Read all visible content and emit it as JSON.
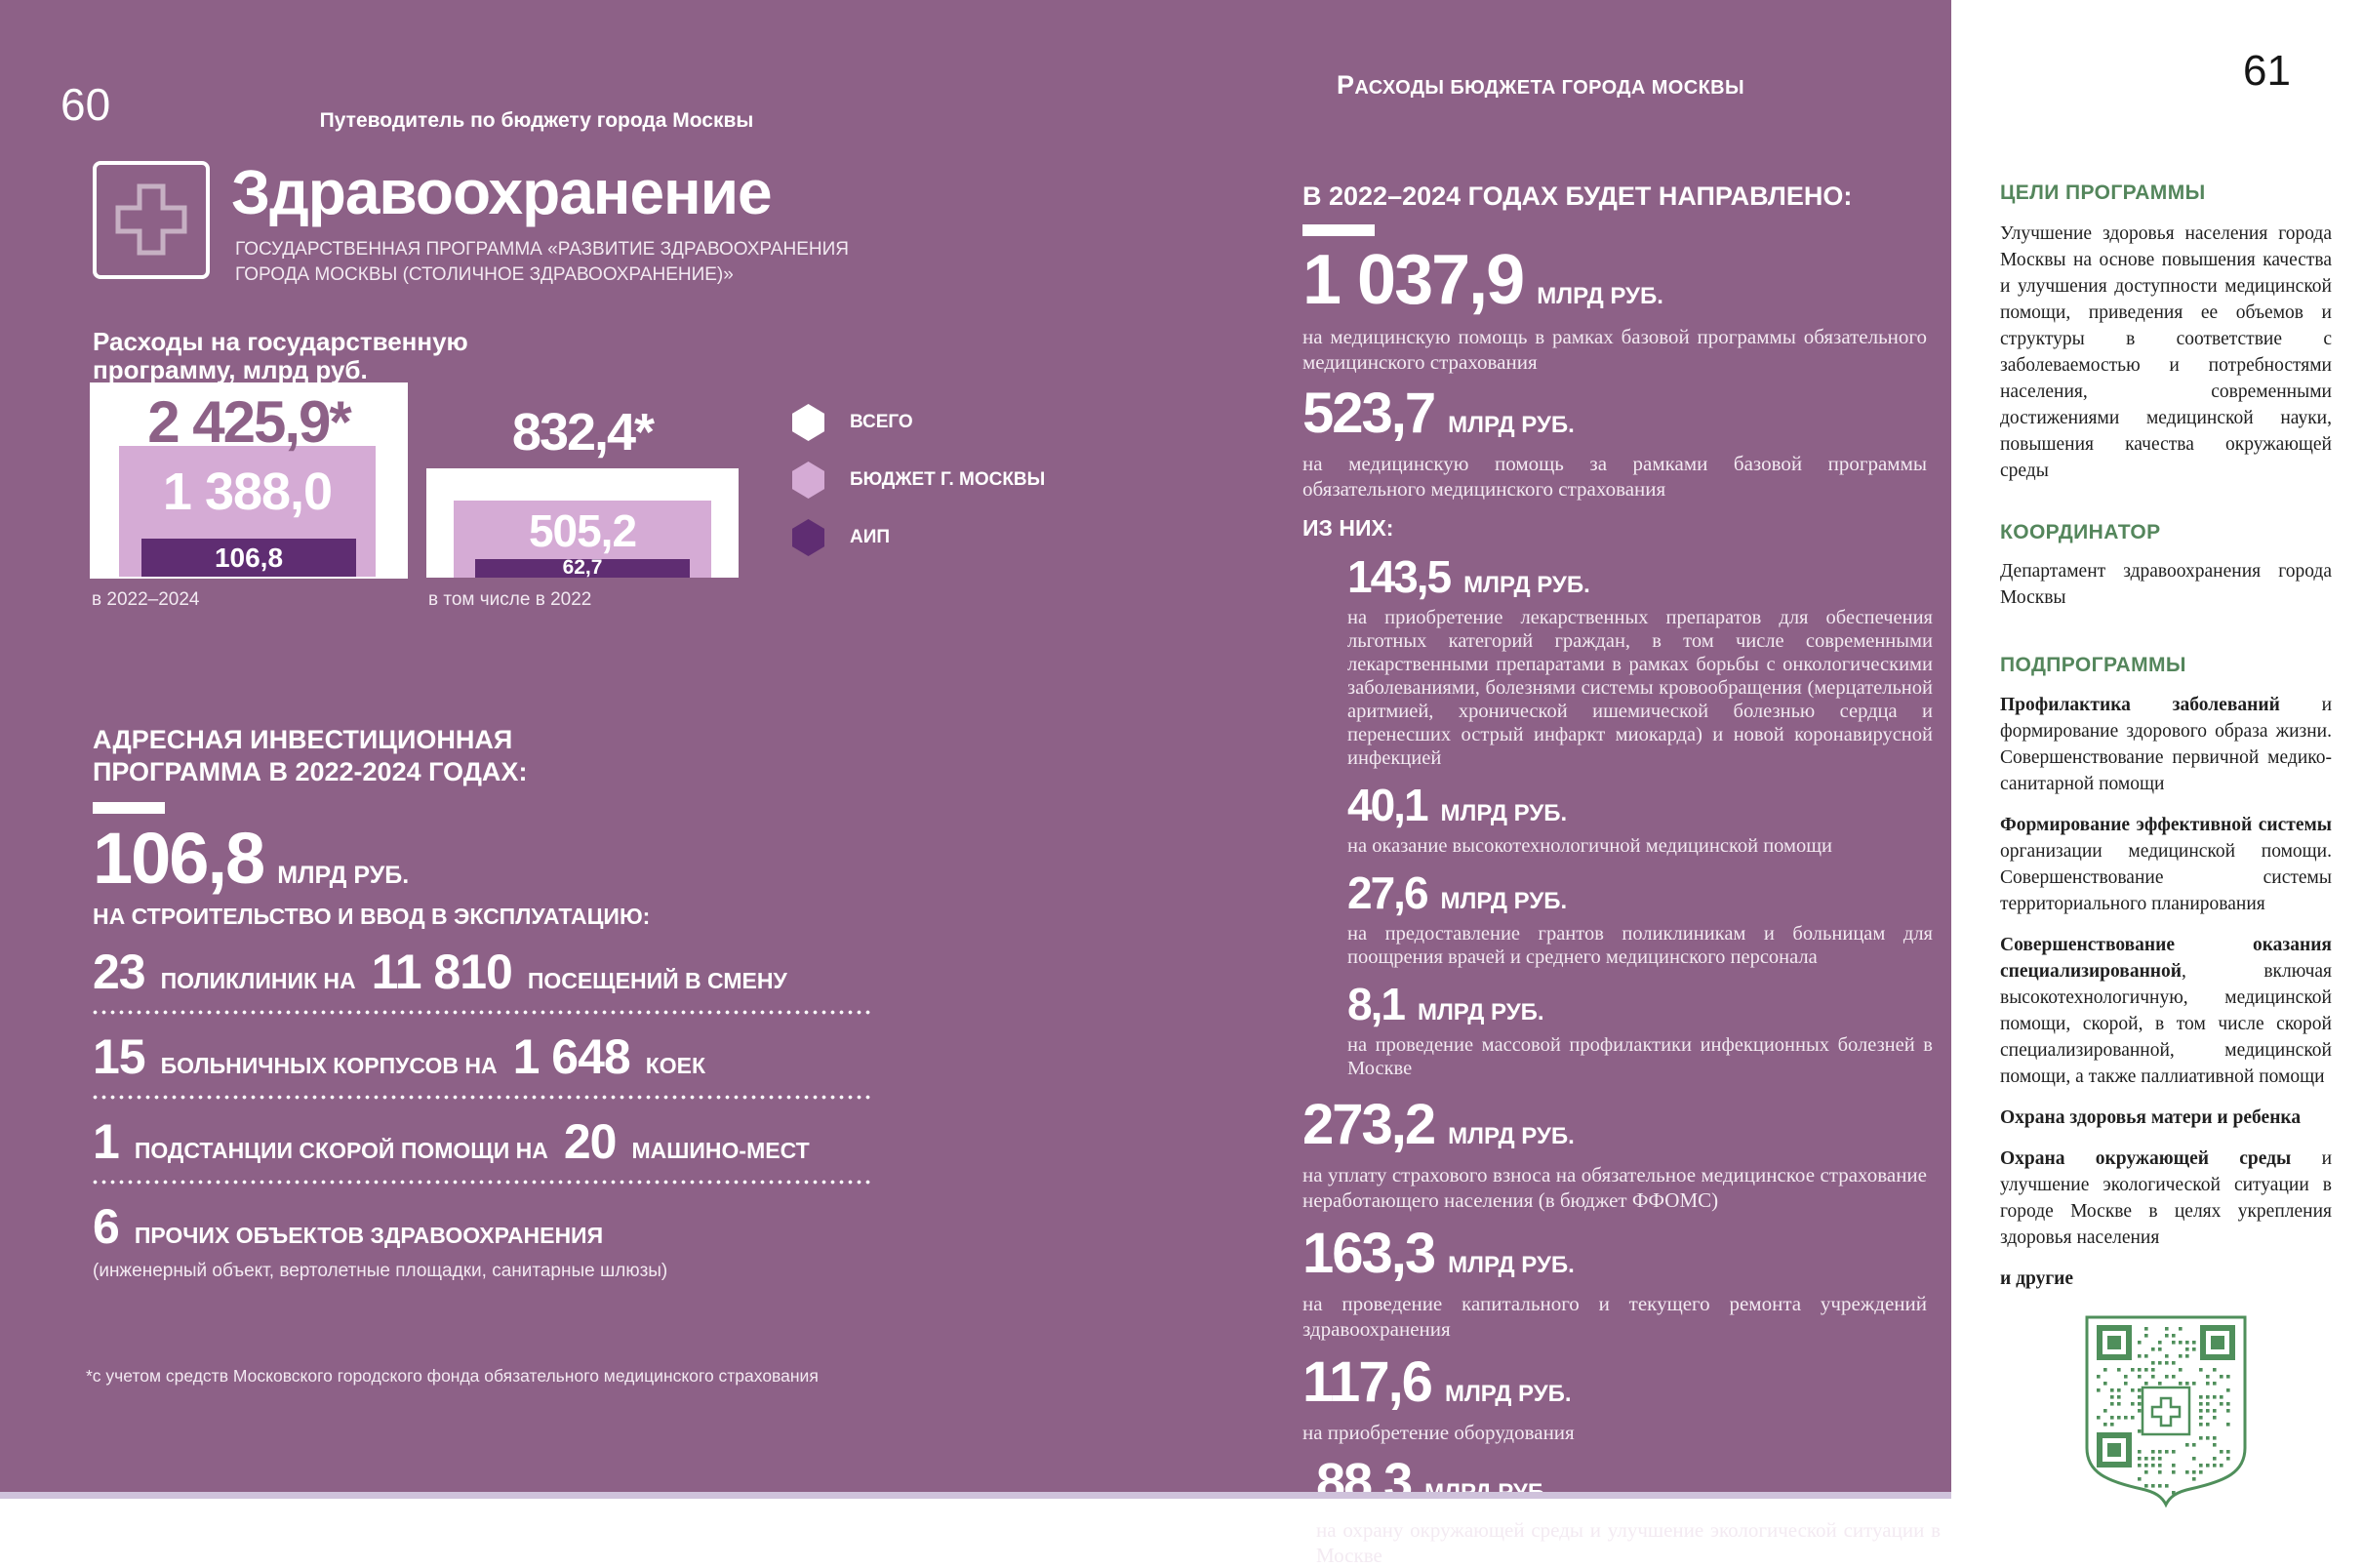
{
  "colors": {
    "background_purple": "#8d6187",
    "budget_light_purple": "#d5abd5",
    "aip_dark_purple": "#5f2d72",
    "accent_green": "#54865c",
    "qr_green": "#4f8f5b"
  },
  "page_left": {
    "page_number": "60",
    "running_header": "Путеводитель по бюджету города Москвы",
    "program": {
      "title": "Здравоохранение",
      "subtitle": "ГОСУДАРСТВЕННАЯ ПРОГРАММА «РАЗВИТИЕ ЗДРАВООХРАНЕНИЯ ГОРОДА МОСКВЫ (СТОЛИЧНОЕ ЗДРАВООХРАНЕНИЕ)»"
    },
    "chart": {
      "title": "Расходы на государственную программу, млрд руб.",
      "groups": [
        {
          "total": "2 425,9*",
          "budget": "1 388,0",
          "aip": "106,8",
          "caption": "в 2022–2024"
        },
        {
          "total": "832,4*",
          "budget": "505,2",
          "aip": "62,7",
          "caption": "в том числе в 2022"
        }
      ],
      "legend": [
        {
          "label": "ВСЕГО"
        },
        {
          "label": "БЮДЖЕТ Г. МОСКВЫ"
        },
        {
          "label": "АИП"
        }
      ]
    },
    "aip_section": {
      "heading": "АДРЕСНАЯ ИНВЕСТИЦИОННАЯ ПРОГРАММА В 2022-2024 ГОДАХ:",
      "amount": "106,8",
      "amount_unit": "МЛРД РУБ.",
      "sub_heading": "НА СТРОИТЕЛЬСТВО И ВВОД В ЭКСПЛУАТАЦИЮ:",
      "items": [
        {
          "num": "23",
          "label": "ПОЛИКЛИНИК  НА",
          "num2": "11 810",
          "label2": "ПОСЕЩЕНИЙ В СМЕНУ"
        },
        {
          "num": "15",
          "label": "БОЛЬНИЧНЫХ КОРПУСОВ НА",
          "num2": "1 648",
          "label2": "КОЕК"
        },
        {
          "num": "1",
          "label": "ПОДСТАНЦИИ СКОРОЙ ПОМОЩИ НА",
          "num2": "20",
          "label2": "МАШИНО-МЕСТ"
        },
        {
          "num": "6",
          "label": "ПРОЧИХ ОБЪЕКТОВ ЗДРАВООХРАНЕНИЯ",
          "note": "(инженерный объект, вертолетные площадки, санитарные шлюзы)"
        }
      ]
    },
    "footnote": "*с учетом средств Московского городского фонда обязательного медицинского страхования"
  },
  "page_right": {
    "page_number": "61",
    "running_header": "РАСХОДЫ БЮДЖЕТА ГОРОДА МОСКВЫ",
    "allocations": {
      "heading": "В 2022–2024 ГОДАХ БУДЕТ НАПРАВЛЕНО:",
      "top": [
        {
          "value": "1 037,9",
          "unit": "МЛРД РУБ.",
          "desc": "на медицинскую помощь в рамках базовой программы  обязательного медицинского страхования"
        },
        {
          "value": "523,7",
          "unit": "МЛРД РУБ.",
          "desc": "на медицинскую помощь за рамками базовой программы обязательного медицинского страхования"
        }
      ],
      "iz_nih_label": "ИЗ НИХ:",
      "sub": [
        {
          "value": "143,5",
          "unit": "МЛРД РУБ.",
          "desc": "на приобретение лекарственных препаратов для обеспечения льготных категорий граждан, в том числе современными лекарственными препаратами в рамках борьбы с онкологическими заболеваниями, болезнями системы кровообращения (мерцательной аритмией, хронической ишемической болезнью сердца и перенесших острый инфаркт миокарда) и новой коронавирусной инфекцией"
        },
        {
          "value": "40,1",
          "unit": "МЛРД РУБ.",
          "desc": "на оказание высокотехнологичной медицинской помощи"
        },
        {
          "value": "27,6",
          "unit": "МЛРД РУБ.",
          "desc": "на предоставление грантов поликлиникам и больницам для поощрения врачей и среднего медицинского персонала"
        },
        {
          "value": "8,1",
          "unit": "МЛРД РУБ.",
          "desc": "на проведение массовой профилактики инфекционных болезней в Москве"
        }
      ],
      "rest": [
        {
          "value": "273,2",
          "unit": "МЛРД РУБ.",
          "desc": "на уплату страхового взноса на обязательное медицинское страхование неработающего населения (в бюджет ФФОМС)"
        },
        {
          "value": "163,3",
          "unit": "МЛРД РУБ.",
          "desc": "на проведение капитального и текущего ремонта учреждений здравоохранения"
        },
        {
          "value": "117,6",
          "unit": "МЛРД РУБ.",
          "desc": "на приобретение оборудования"
        },
        {
          "value": "88,3",
          "unit": "МЛРД РУБ.",
          "desc": "на охрану окружающей среды и улучшение экологической ситуации в Москве"
        }
      ]
    },
    "sidebar": {
      "goals_heading": "ЦЕЛИ ПРОГРАММЫ",
      "goals_text": "Улучшение здоровья населения города Москвы на основе повышения качества и улучшения доступности медицинской помощи, приведения ее объемов и структуры в соответствие с заболеваемостью и потребностями населения, современными достижениями медицинской науки, повышения качества окружающей среды",
      "coordinator_heading": "КООРДИНАТОР",
      "coordinator_text": "Департамент здравоохранения города Москвы",
      "subprograms_heading": "ПОДПРОГРАММЫ",
      "subprograms": [
        {
          "bold": "Профилактика заболеваний",
          "rest": " и формирование здорового образа жизни. Совершенствование первичной медико-санитарной помощи"
        },
        {
          "bold": "Формирование эффективной системы",
          "rest": " организации медицинской помощи. Совершенствование системы территориального планирования"
        },
        {
          "bold": "Совершенствование оказания специализированной",
          "rest": ", включая высокотехнологичную, медицинской помощи, скорой, в том числе скорой специализированной, медицинской помощи, а также паллиативной помощи"
        },
        {
          "bold": "Охрана здоровья матери и ребенка",
          "rest": ""
        },
        {
          "bold": "Охрана окружающей среды",
          "rest": " и улучшение экологической ситуации в городе Москве в целях укрепления здоровья населения"
        },
        {
          "bold": "и другие",
          "rest": ""
        }
      ]
    }
  },
  "chart_data": {
    "type": "bar",
    "style": "nested-bars",
    "title": "Расходы на государственную программу, млрд руб.",
    "categories": [
      "в 2022–2024",
      "в том числе в 2022"
    ],
    "series": [
      {
        "name": "ВСЕГО",
        "values": [
          2425.9,
          832.4
        ]
      },
      {
        "name": "БЮДЖЕТ Г. МОСКВЫ",
        "values": [
          1388.0,
          505.2
        ]
      },
      {
        "name": "АИП",
        "values": [
          106.8,
          62.7
        ]
      }
    ],
    "legend_position": "right",
    "note": "*с учетом средств Московского городского фонда обязательного медицинского страхования"
  }
}
